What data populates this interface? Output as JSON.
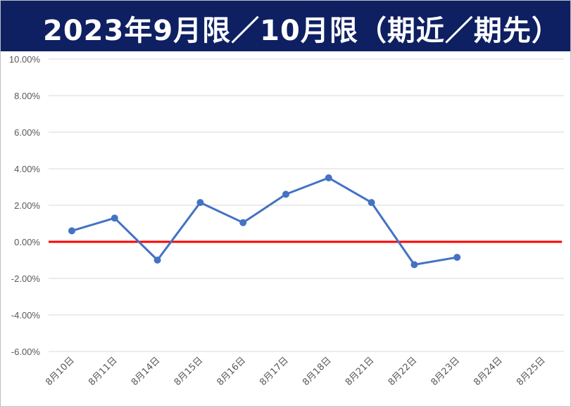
{
  "chart_data": {
    "type": "line",
    "title": "2023年9月限／10月限（期近／期先）",
    "categories": [
      "8月10日",
      "8月11日",
      "8月14日",
      "8月15日",
      "8月16日",
      "8月17日",
      "8月18日",
      "8月21日",
      "8月22日",
      "8月23日",
      "8月24日",
      "8月25日"
    ],
    "series": [
      {
        "values": [
          0.6,
          1.3,
          -1.0,
          2.15,
          1.05,
          2.6,
          3.5,
          2.15,
          -1.25,
          -0.85,
          null,
          null
        ],
        "color": "#4472c4"
      }
    ],
    "yticks": [
      "10.00%",
      "8.00%",
      "6.00%",
      "4.00%",
      "2.00%",
      "0.00%",
      "-2.00%",
      "-4.00%",
      "-6.00%"
    ],
    "ylim": [
      -6,
      10
    ],
    "reference_line": {
      "value": 0,
      "color": "#ff0000"
    },
    "grid": true,
    "legend": "none",
    "colors": {
      "title_bg": "#0e2062",
      "title_text": "#ffffff",
      "grid": "#d9d9d9"
    }
  }
}
